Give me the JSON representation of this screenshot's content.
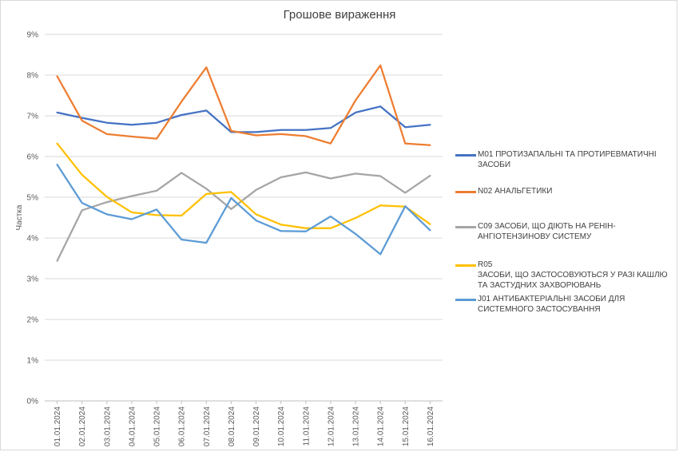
{
  "chart_data": {
    "type": "line",
    "title": "Грошове вираження",
    "ylabel": "Частка",
    "xlabel": "",
    "ylim": [
      0,
      9
    ],
    "yticks": [
      "0%",
      "1%",
      "2%",
      "3%",
      "4%",
      "5%",
      "6%",
      "7%",
      "8%",
      "9%"
    ],
    "grid": "horizontal",
    "legend_position": "right",
    "categories": [
      "01.01.2024",
      "02.01.2024",
      "03.01.2024",
      "04.01.2024",
      "05.01.2024",
      "06.01.2024",
      "07.01.2024",
      "08.01.2024",
      "09.01.2024",
      "10.01.2024",
      "11.01.2024",
      "12.01.2024",
      "13.01.2024",
      "14.01.2024",
      "15.01.2024",
      "16.01.2024"
    ],
    "series": [
      {
        "name": "M01 ПРОТИЗАПАЛЬНІ ТА ПРОТИРЕВМАТИЧНІ ЗАСОБИ",
        "color": "#4472c4",
        "values": [
          7.08,
          6.95,
          6.83,
          6.78,
          6.83,
          7.02,
          7.13,
          6.6,
          6.6,
          6.65,
          6.65,
          6.7,
          7.08,
          7.23,
          6.72,
          6.78
        ]
      },
      {
        "name": "N02 АНАЛЬГЕТИКИ",
        "color": "#ed7d31",
        "values": [
          7.97,
          6.88,
          6.55,
          6.49,
          6.44,
          7.35,
          8.19,
          6.63,
          6.52,
          6.55,
          6.5,
          6.32,
          7.38,
          8.24,
          6.32,
          6.28
        ]
      },
      {
        "name": "C09 ЗАСОБИ, ЩО ДІЮТЬ НА РЕНІН-АНГІОТЕНЗИНОВУ СИСТЕМУ",
        "color": "#a5a5a5",
        "values": [
          3.44,
          4.68,
          4.88,
          5.03,
          5.16,
          5.6,
          5.21,
          4.71,
          5.18,
          5.49,
          5.61,
          5.46,
          5.58,
          5.52,
          5.11,
          5.53
        ]
      },
      {
        "name": "R05\nЗАСОБИ, ЩО ЗАСТОСОВУЮТЬСЯ У РАЗІ КАШЛЮ ТА ЗАСТУДНИХ ЗАХВОРЮВАНЬ",
        "color": "#ffc000",
        "values": [
          6.32,
          5.55,
          5.01,
          4.63,
          4.56,
          4.55,
          5.08,
          5.13,
          4.58,
          4.33,
          4.24,
          4.24,
          4.49,
          4.8,
          4.77,
          4.34
        ]
      },
      {
        "name": "J01 АНТИБАКТЕРІАЛЬНІ ЗАСОБИ ДЛЯ СИСТЕМНОГО ЗАСТОСУВАННЯ",
        "color": "#5b9bd5",
        "values": [
          5.8,
          4.86,
          4.58,
          4.46,
          4.7,
          3.96,
          3.88,
          4.98,
          4.43,
          4.17,
          4.16,
          4.53,
          4.1,
          3.6,
          4.78,
          4.19
        ]
      }
    ]
  }
}
